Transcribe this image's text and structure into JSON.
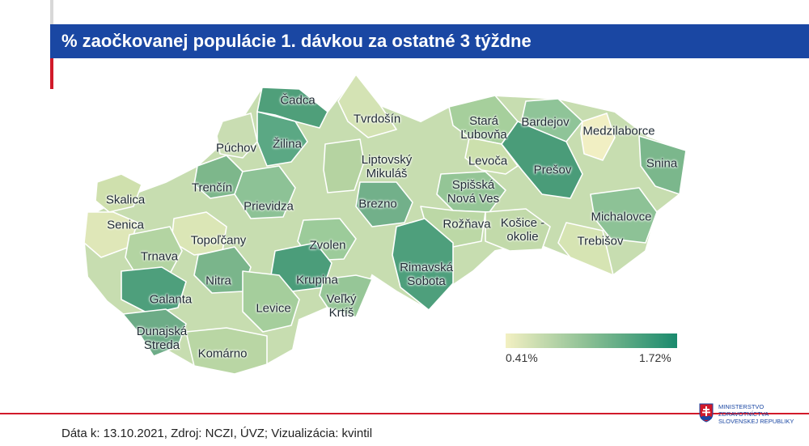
{
  "title": "% zaočkovanej populácie 1. dávkou za ostatné 3 týždne",
  "legend": {
    "min": "0.41%",
    "max": "1.72%",
    "colors": [
      "#f3f0c2",
      "#86bd92",
      "#1a8a6d"
    ]
  },
  "footer": "Dáta k: 13.10.2021, Zdroj: NCZI, ÚVZ; Vizualizácia: kvintil",
  "logo": {
    "icon": "slovak-coat-of-arms-icon",
    "line1": "MINISTERSTVO",
    "line2": "ZDRAVOTNÍCTVA",
    "line3": "SLOVENSKEJ REPUBLIKY"
  },
  "districts": [
    {
      "name": "Čadca",
      "color": "#4f9f7a"
    },
    {
      "name": "Tvrdošín",
      "color": "#d4e3b4"
    },
    {
      "name": "Stará\nĽubovňa",
      "color": "#a6cf9c"
    },
    {
      "name": "Bardejov",
      "color": "#8fc498"
    },
    {
      "name": "Medzilaborce",
      "color": "#f1efc3"
    },
    {
      "name": "Púchov",
      "color": "#c9ddb2"
    },
    {
      "name": "Žilina",
      "color": "#5ba884"
    },
    {
      "name": "Liptovský\nMikuláš",
      "color": "#b5d3a1"
    },
    {
      "name": "Levoča",
      "color": "#cce0ad"
    },
    {
      "name": "Prešov",
      "color": "#4a9c79"
    },
    {
      "name": "Snina",
      "color": "#7bb78c"
    },
    {
      "name": "Skalica",
      "color": "#cfe0ad"
    },
    {
      "name": "Trenčín",
      "color": "#7db78b"
    },
    {
      "name": "Prievidza",
      "color": "#8dc296"
    },
    {
      "name": "Brezno",
      "color": "#72b08a"
    },
    {
      "name": "Spišská\nNová Ves",
      "color": "#94c596"
    },
    {
      "name": "Senica",
      "color": "#dfe7b8"
    },
    {
      "name": "Rožňava",
      "color": "#bcd8a6"
    },
    {
      "name": "Košice -\nokolie",
      "color": "#c2daaa"
    },
    {
      "name": "Michalovce",
      "color": "#8dc296"
    },
    {
      "name": "Topoľčany",
      "color": "#dbe6b6"
    },
    {
      "name": "Zvolen",
      "color": "#9ccb9a"
    },
    {
      "name": "Trebišov",
      "color": "#d6e4b3"
    },
    {
      "name": "Trnava",
      "color": "#b3d4a2"
    },
    {
      "name": "Rimavská\nSobota",
      "color": "#4e9f7c"
    },
    {
      "name": "Nitra",
      "color": "#7ab58b"
    },
    {
      "name": "Krupina",
      "color": "#4b9d7a"
    },
    {
      "name": "Galanta",
      "color": "#4e9f7c"
    },
    {
      "name": "Levice",
      "color": "#a5ce9c"
    },
    {
      "name": "Veľký\nKrtíš",
      "color": "#96c697"
    },
    {
      "name": "Dunajská\nStreda",
      "color": "#6dac87"
    },
    {
      "name": "Komárno",
      "color": "#b9d6a4"
    }
  ]
}
